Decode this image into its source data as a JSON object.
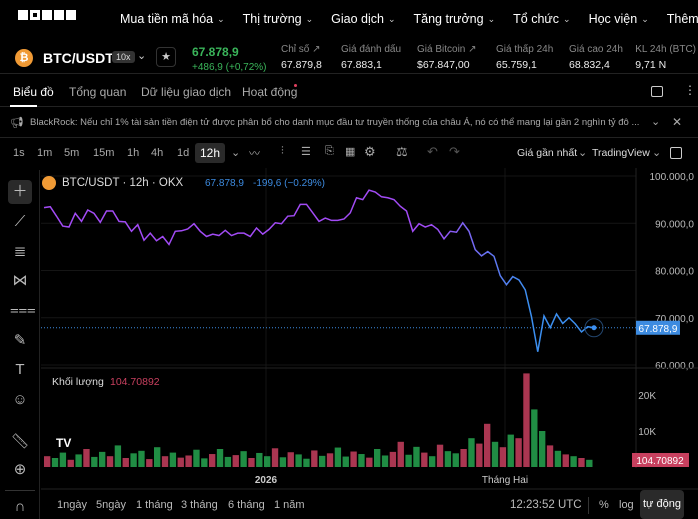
{
  "nav": {
    "items": [
      "Mua tiền mã hóa",
      "Thị trường",
      "Giao dịch",
      "Tăng trưởng",
      "Tổ chức",
      "Học viện",
      "Thêm"
    ]
  },
  "ticker": {
    "pair": "BTC/USDT",
    "leverage": "10x",
    "last": "67.878,9",
    "change": "+486,9 (+0,72%)",
    "stats": [
      {
        "label": "Chỉ số ↗",
        "value": "67.879,8"
      },
      {
        "label": "Giá đánh dấu",
        "value": "67.883,1"
      },
      {
        "label": "Giá Bitcoin ↗",
        "value": "$67.847,00"
      },
      {
        "label": "Giá thấp 24h",
        "value": "65.759,1"
      },
      {
        "label": "Giá cao 24h",
        "value": "68.832,4"
      },
      {
        "label": "KL 24h (BTC)",
        "value": "9,71 N"
      }
    ]
  },
  "tabs": [
    "Biểu đồ",
    "Tổng quan",
    "Dữ liệu giao dịch",
    "Hoạt động"
  ],
  "news": "BlackRock: Nếu chỉ 1% tài sản tiền điện tử được phân bổ cho danh mục đầu tư truyền thống của châu Á, nó có thể mang lại gần 2 nghìn tỷ đô ...",
  "toolbar": {
    "intervals": [
      "1s",
      "1m",
      "5m",
      "15m",
      "1h",
      "4h",
      "1d",
      "12h"
    ],
    "active": "12h",
    "price_type": "Giá gần nhất",
    "chart_view": "TradingView"
  },
  "legend": {
    "title": "BTC/USDT · 12h · OKX",
    "price": "67.878,9",
    "change": "-199,6 (−0.29%)",
    "volume_label": "Khối lượng",
    "volume_value": "104.70892"
  },
  "bottom": {
    "ranges": [
      "1ngày",
      "5ngày",
      "1 tháng",
      "3 tháng",
      "6 tháng",
      "1 năm"
    ],
    "time": "12:23:52 UTC",
    "pct": "%",
    "log": "log",
    "auto": "tự động"
  },
  "colors": {
    "up": "#26a650",
    "down": "#c8405f",
    "line_start": "#a24bf5",
    "line_end": "#3c8ff0",
    "last_price": "#3d8be0"
  },
  "chart_data": {
    "type": "line",
    "price_ticks": [
      "100.000,0",
      "90.000,0",
      "80.000,0",
      "70.000,0",
      "60.000,0"
    ],
    "ylim": [
      60000,
      100000
    ],
    "x_ticks": [
      "2026",
      "Tháng Hai"
    ],
    "last_price_label": "67.878,9",
    "values": [
      93300,
      93500,
      91500,
      89400,
      89200,
      92100,
      90400,
      92800,
      92100,
      90200,
      92600,
      92600,
      90400,
      90300,
      88300,
      89700,
      86400,
      87900,
      86300,
      87200,
      85500,
      88300,
      88400,
      88800,
      89900,
      88300,
      87200,
      87700,
      87400,
      88500,
      87400,
      87900,
      87900,
      87200,
      89000,
      87700,
      88700,
      90100,
      89900,
      91500,
      91600,
      94000,
      94000,
      92200,
      90400,
      91100,
      90600,
      90600,
      90900,
      92200,
      95400,
      95000,
      97000,
      96600,
      95600,
      95400,
      95000,
      93600,
      92600,
      88300,
      89900,
      89200,
      89700,
      88700,
      86700,
      88300,
      88100,
      90100,
      88300,
      84400,
      83100,
      84000,
      83000,
      78900,
      77000,
      78700,
      78000,
      75900,
      70200,
      62800,
      70400,
      67900,
      70800,
      68800,
      70000,
      68700,
      67000,
      68100,
      67879
    ],
    "volume": {
      "ticks": [
        "20K",
        "10K"
      ],
      "ylim": [
        0,
        26000
      ],
      "values": [
        3000,
        2500,
        4000,
        2000,
        3500,
        5000,
        2800,
        4200,
        3000,
        6000,
        2500,
        3800,
        4500,
        2200,
        5500,
        3000,
        4000,
        2600,
        3200,
        4800,
        2400,
        3600,
        5000,
        2800,
        3300,
        4400,
        2500,
        3900,
        3000,
        5200,
        2700,
        4100,
        3500,
        2300,
        4600,
        3100,
        3800,
        5400,
        2900,
        4300,
        3600,
        2600,
        5000,
        3200,
        4200,
        7000,
        3400,
        5600,
        4000,
        3000,
        6200,
        4400,
        3800,
        5000,
        8000,
        6500,
        12000,
        7000,
        5500,
        9000,
        8000,
        26000,
        16000,
        10000,
        6000,
        4500,
        3500,
        3000,
        2500,
        2000
      ],
      "colors": [
        "down",
        "up",
        "up",
        "down",
        "up",
        "down",
        "up",
        "up",
        "down",
        "up",
        "down",
        "up",
        "up",
        "down",
        "up",
        "down",
        "up",
        "down",
        "down",
        "up",
        "up",
        "down",
        "up",
        "up",
        "down",
        "up",
        "down",
        "up",
        "up",
        "down",
        "up",
        "down",
        "up",
        "up",
        "down",
        "up",
        "down",
        "up",
        "up",
        "down",
        "up",
        "down",
        "up",
        "up",
        "down",
        "down",
        "up",
        "up",
        "down",
        "up",
        "down",
        "up",
        "up",
        "down",
        "up",
        "down",
        "down",
        "up",
        "down",
        "up",
        "down",
        "down",
        "up",
        "up",
        "down",
        "up",
        "down",
        "up",
        "down",
        "up"
      ]
    }
  }
}
